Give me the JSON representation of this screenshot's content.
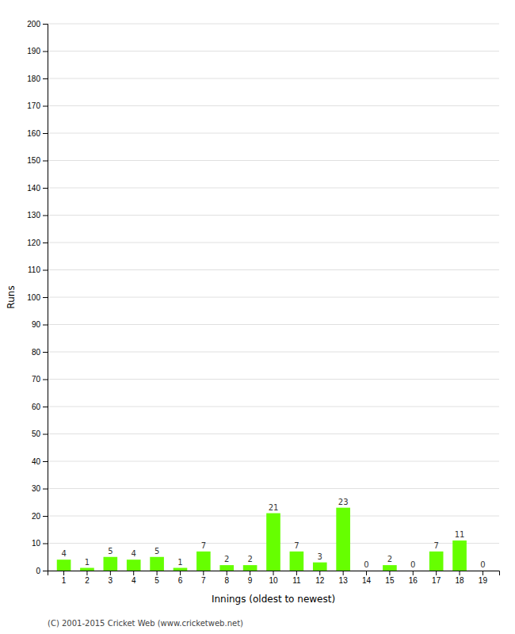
{
  "chart_data": {
    "type": "bar",
    "xlabel": "Innings (oldest to newest)",
    "ylabel": "Runs",
    "categories": [
      "1",
      "2",
      "3",
      "4",
      "5",
      "6",
      "7",
      "8",
      "9",
      "10",
      "11",
      "12",
      "13",
      "14",
      "15",
      "16",
      "17",
      "18",
      "19"
    ],
    "values": [
      4,
      1,
      5,
      4,
      5,
      1,
      7,
      2,
      2,
      21,
      7,
      3,
      23,
      0,
      2,
      0,
      7,
      11,
      0
    ],
    "color": "#66ff00",
    "ylim": [
      0,
      200
    ],
    "yticks": [
      0,
      10,
      20,
      30,
      40,
      50,
      60,
      70,
      80,
      90,
      100,
      110,
      120,
      130,
      140,
      150,
      160,
      170,
      180,
      190,
      200
    ],
    "grid": true,
    "data_labels": true,
    "annotations": [
      "(C) 2001-2015 Cricket Web (www.cricketweb.net)"
    ]
  }
}
